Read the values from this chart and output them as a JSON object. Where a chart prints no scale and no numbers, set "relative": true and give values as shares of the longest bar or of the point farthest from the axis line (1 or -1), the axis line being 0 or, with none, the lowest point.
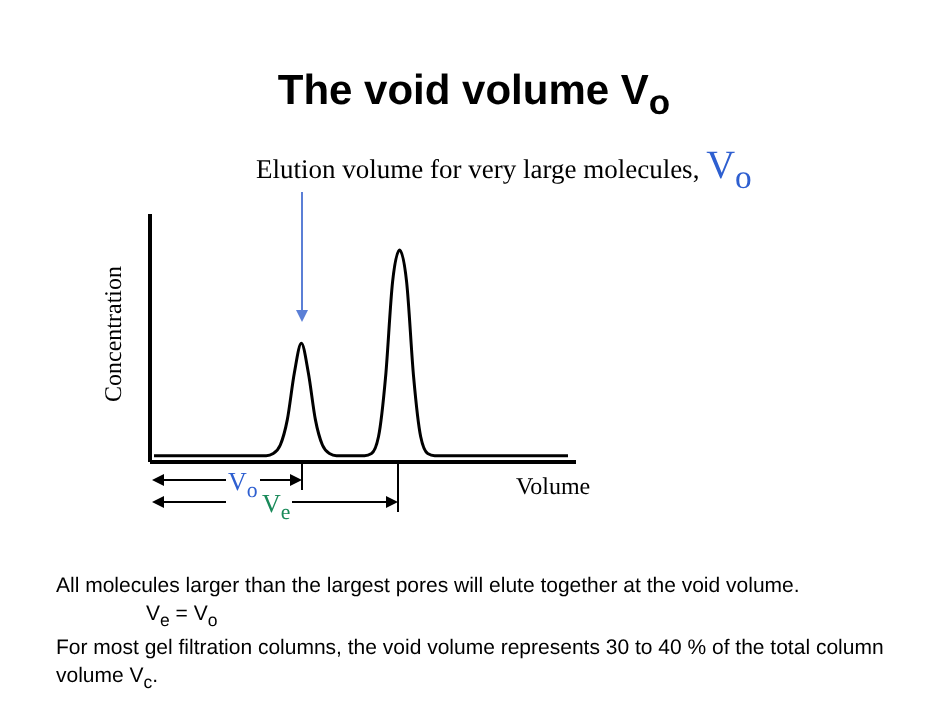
{
  "chart_data": {
    "type": "line",
    "title": "The void volume V$_{o}$",
    "subtitle": "Elution volume for very large molecules,",
    "xlabel": "Volume",
    "ylabel": "Concentration",
    "relative": true,
    "color": "#000000",
    "categories": [
      null,
      null,
      null,
      null,
      null,
      null,
      null,
      null,
      null,
      null,
      null,
      null,
      null,
      null,
      null,
      null,
      null,
      null,
      null,
      null,
      null,
      null,
      null,
      null,
      null,
      null,
      null,
      null,
      null,
      null,
      null,
      null,
      null,
      null,
      null,
      null,
      null,
      null,
      null,
      null,
      null,
      null,
      null,
      null,
      null,
      null,
      null,
      null,
      null,
      null,
      null,
      null,
      null,
      null,
      null,
      null,
      null,
      null,
      null,
      null
    ],
    "values": [
      0.03,
      0.03,
      0.03,
      0.03,
      0.03,
      0.03,
      0.03,
      0.03,
      0.03,
      0.03,
      0.03,
      0.03,
      0.03,
      0.03,
      0.03,
      0.03,
      0.03,
      0.04,
      0.08,
      0.2,
      0.42,
      0.56,
      0.42,
      0.2,
      0.08,
      0.04,
      0.03,
      0.03,
      0.03,
      0.03,
      0.03,
      0.04,
      0.12,
      0.4,
      0.85,
      1,
      0.85,
      0.4,
      0.12,
      0.04,
      0.03,
      0.03,
      0.03,
      0.03,
      0.03,
      0.03,
      0.03,
      0.03,
      0.03,
      0.03,
      0.03,
      0.03,
      0.03,
      0.03,
      0.03,
      0.03,
      0.03,
      0.03,
      0.03,
      0.03
    ],
    "annotations": [
      "V$_{o}$",
      "V$_{o}$",
      "V$_{e}$",
      "All molecules larger than the largest pores will elute together at the void volume.",
      "V$_{e}$ = V$_{o}$",
      "For most gel filtration columns, the void volume represents 30 to 40 % of the total column volume V$_{c}$."
    ],
    "legend": false,
    "grid": false,
    "marker": "none",
    "line_style": "solid"
  }
}
